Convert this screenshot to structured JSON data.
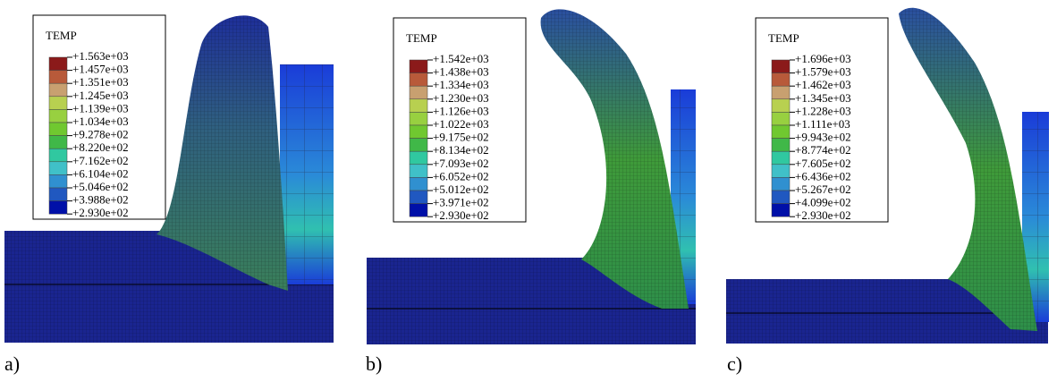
{
  "panels": [
    {
      "label": "a)",
      "legend": {
        "title": "TEMP",
        "values": [
          "+1.563e+03",
          "+1.457e+03",
          "+1.351e+03",
          "+1.245e+03",
          "+1.139e+03",
          "+1.034e+03",
          "+9.278e+02",
          "+8.220e+02",
          "+7.162e+02",
          "+6.104e+02",
          "+5.046e+02",
          "+3.988e+02",
          "+2.930e+02"
        ]
      }
    },
    {
      "label": "b)",
      "legend": {
        "title": "TEMP",
        "values": [
          "+1.542e+03",
          "+1.438e+03",
          "+1.334e+03",
          "+1.230e+03",
          "+1.126e+03",
          "+1.022e+03",
          "+9.175e+02",
          "+8.134e+02",
          "+7.093e+02",
          "+6.052e+02",
          "+5.012e+02",
          "+3.971e+02",
          "+2.930e+02"
        ]
      }
    },
    {
      "label": "c)",
      "legend": {
        "title": "TEMP",
        "values": [
          "+1.696e+03",
          "+1.579e+03",
          "+1.462e+03",
          "+1.345e+03",
          "+1.228e+03",
          "+1.111e+03",
          "+9.943e+02",
          "+8.774e+02",
          "+7.605e+02",
          "+6.436e+02",
          "+5.267e+02",
          "+4.099e+02",
          "+2.930e+02"
        ]
      }
    }
  ]
}
